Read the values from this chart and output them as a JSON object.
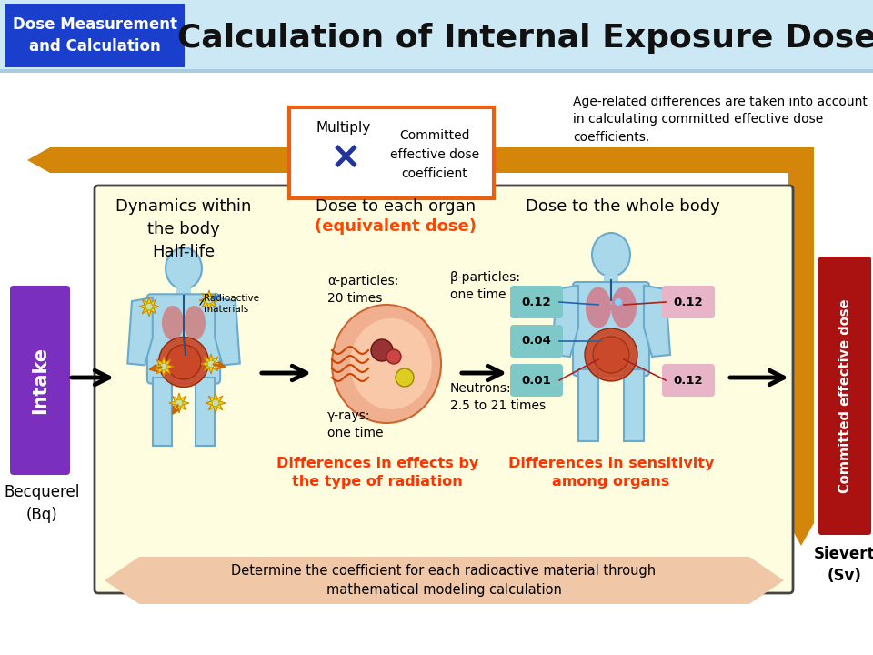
{
  "title": "Calculation of Internal Exposure Doses",
  "header_box_text": "Dose Measurement\nand Calculation",
  "header_bg": "#cde8f5",
  "header_box_bg": "#1a3fcc",
  "header_box_fg": "#ffffff",
  "title_color": "#111111",
  "age_note": "Age-related differences are taken into account\nin calculating committed effective dose\ncoefficients.",
  "multiply_box_text1": "Multiply",
  "multiply_box_text2": "Committed\neffective dose\ncoefficient",
  "multiply_symbol": "×",
  "orange_color": "#d4860a",
  "dark_red_box_color": "#aa1111",
  "dark_red_box_text": "Committed effective dose",
  "purple_box_color": "#7b2fbe",
  "purple_box_text": "Intake",
  "main_panel_bg": "#fffde0",
  "main_panel_border": "#444444",
  "col1_title": "Dynamics within\nthe body\nHalf-life",
  "col2_title_black": "Dose to each organ",
  "col2_title_red": "(equivalent dose)",
  "col3_title": "Dose to the whole body",
  "col2_title_color": "#ff4500",
  "radiation_texts": [
    "α-particles:\n20 times",
    "γ-rays:\none time",
    "β-particles:\none time",
    "Neutrons:\n2.5 to 21 times"
  ],
  "diff_text1": "Differences in effects by\nthe type of radiation",
  "diff_text2": "Differences in sensitivity\namong organs",
  "diff_color": "#ff3300",
  "numbers": [
    "0.12",
    "0.04",
    "0.01",
    "0.12",
    "0.12"
  ],
  "number_bg_left": [
    "#7ec8c8",
    "#7ec8c8",
    "#7ec8c8"
  ],
  "number_bg_right": [
    "#e8b4c8",
    "#e8b4c8"
  ],
  "bottom_arrow_text": "Determine the coefficient for each radioactive material through\nmathematical modeling calculation",
  "bottom_arrow_color": "#f0c8a8",
  "becquerel_text": "Becquerel\n(Bq)",
  "sievert_text": "Sievert\n(Sv)",
  "radioactive_label": "Radioactive\nmaterials",
  "body_fill": "#a8d8ea",
  "body_edge": "#6aaacc"
}
